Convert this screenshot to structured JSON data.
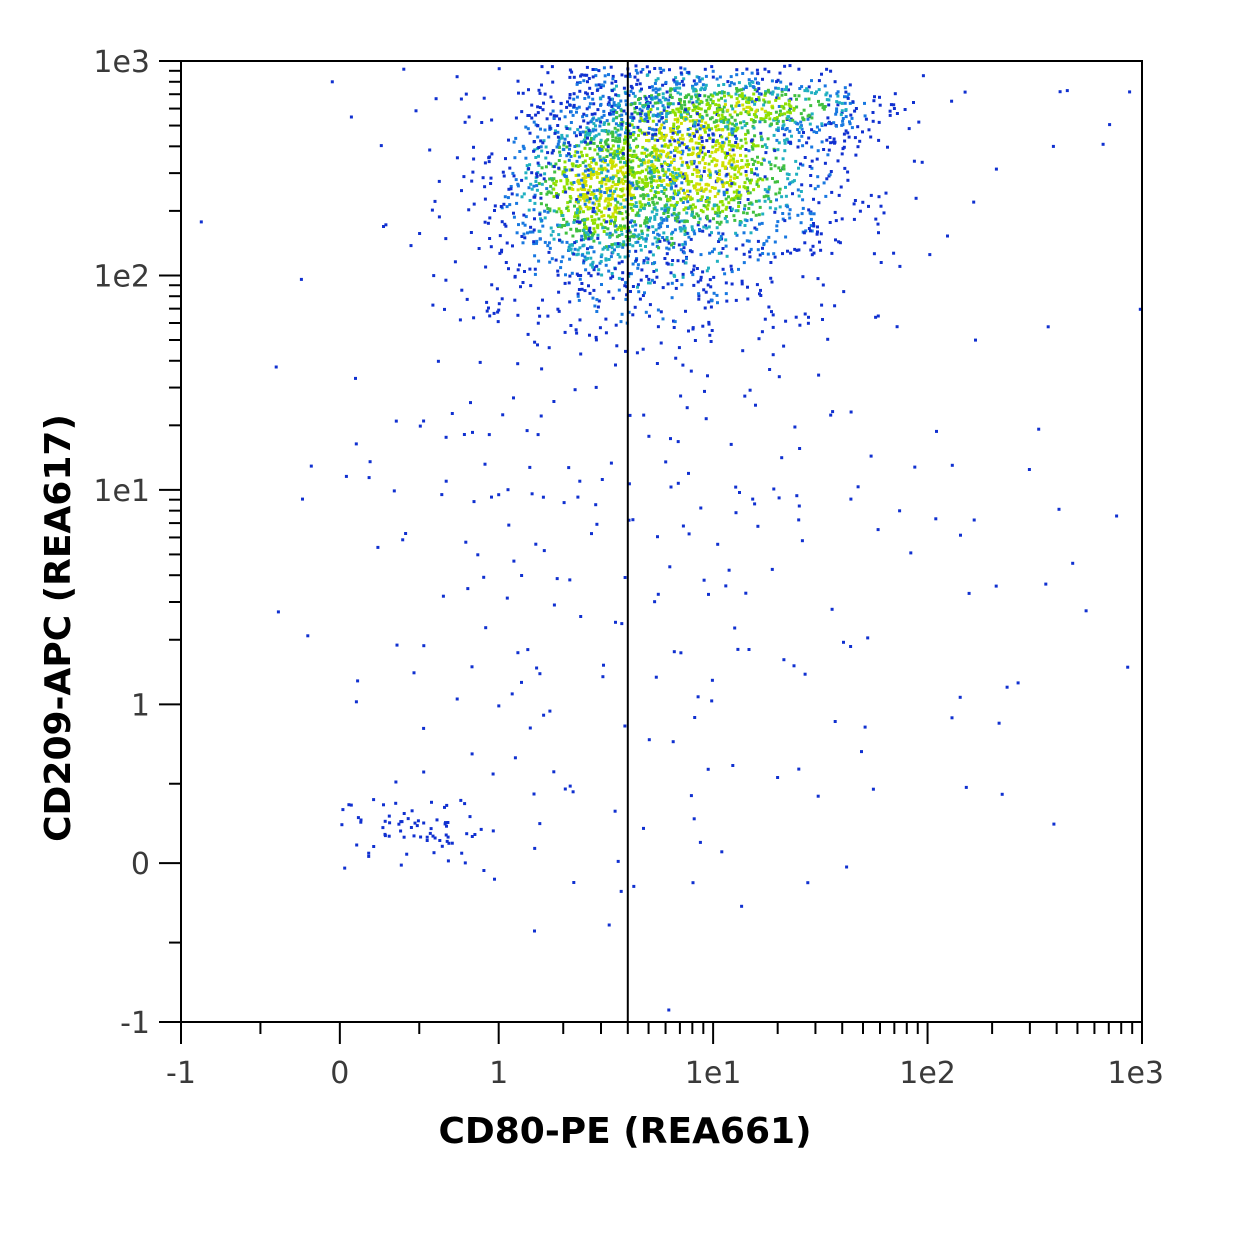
{
  "chart_data": {
    "type": "scatter",
    "plot_style": "density-dot-plot",
    "xlabel": "CD80-PE (REA661)",
    "ylabel": "CD209-APC (REA617)",
    "x_scale": "biexponential",
    "y_scale": "biexponential",
    "xlim": [
      -1,
      1000
    ],
    "ylim": [
      -1,
      1000
    ],
    "x_ticks": [
      {
        "value": -1,
        "label": "-1"
      },
      {
        "value": 0,
        "label": "0"
      },
      {
        "value": 1,
        "label": "1"
      },
      {
        "value": 10,
        "label": "1e1"
      },
      {
        "value": 100,
        "label": "1e2"
      },
      {
        "value": 1000,
        "label": "1e3"
      }
    ],
    "y_ticks": [
      {
        "value": -1,
        "label": "-1"
      },
      {
        "value": 0,
        "label": "0"
      },
      {
        "value": 1,
        "label": "1"
      },
      {
        "value": 10,
        "label": "1e1"
      },
      {
        "value": 100,
        "label": "1e2"
      },
      {
        "value": 1000,
        "label": "1e3"
      }
    ],
    "gate_line": {
      "orientation": "vertical",
      "x": 4.0
    },
    "density_colors": [
      "#1030d0",
      "#1878e0",
      "#20b0c0",
      "#40c040",
      "#90e000",
      "#d0e000"
    ],
    "populations": [
      {
        "x": 3.0,
        "y": 260,
        "count": 1200,
        "density": 0.9
      },
      {
        "x": 8.0,
        "y": 360,
        "count": 1400,
        "density": 1.0
      },
      {
        "x": 14.0,
        "y": 620,
        "count": 500,
        "density": 0.8
      },
      {
        "x": 5.0,
        "y": 180,
        "count": 400,
        "density": 0.5
      },
      {
        "x": 0.5,
        "y": 0.2,
        "count": 70,
        "density": 0.1
      },
      {
        "x": 3.0,
        "y": 12,
        "count": 300,
        "density": 0.1
      }
    ],
    "grid": false,
    "legend": "none"
  }
}
